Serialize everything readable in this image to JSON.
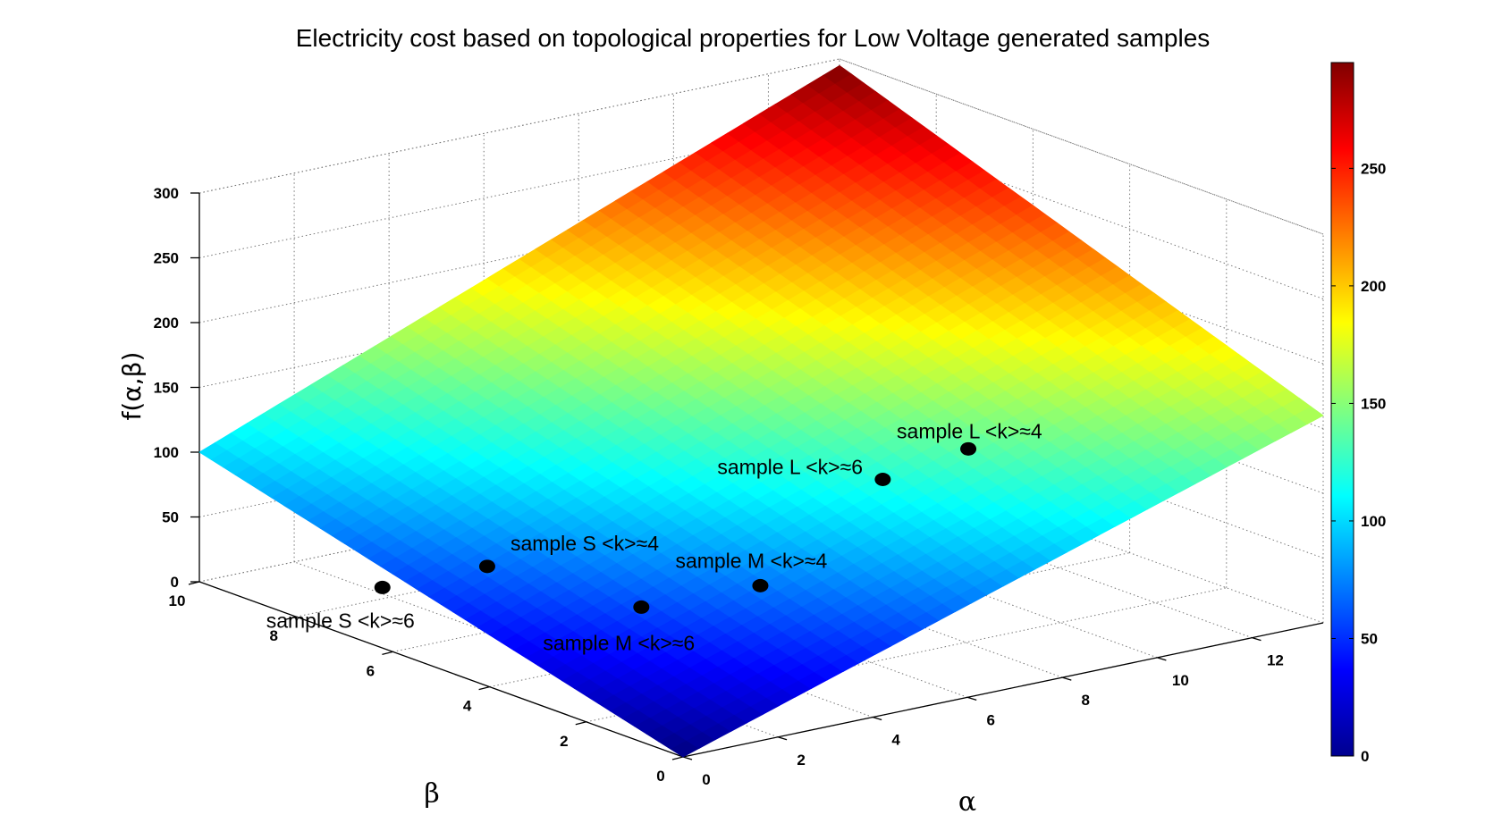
{
  "chart_data": {
    "type": "surface",
    "title": "Electricity cost based on topological properties for Low Voltage generated samples",
    "xlabel": "α",
    "ylabel": "β",
    "zlabel": "f(α,β)",
    "xlim": [
      0,
      13.5
    ],
    "ylim": [
      0,
      10
    ],
    "zlim": [
      0,
      300
    ],
    "xticks": [
      0,
      2,
      4,
      6,
      8,
      10,
      12
    ],
    "yticks": [
      0,
      2,
      4,
      6,
      8,
      10
    ],
    "zticks": [
      0,
      50,
      100,
      150,
      200,
      250,
      300
    ],
    "grid": true,
    "colormap": "jet",
    "colorbar": {
      "range": [
        0,
        295
      ],
      "ticks": [
        0,
        50,
        100,
        150,
        200,
        250
      ]
    },
    "surface_corners": [
      {
        "alpha": 0,
        "beta": 0,
        "f": 0
      },
      {
        "alpha": 0,
        "beta": 10,
        "f": 100
      },
      {
        "alpha": 13.5,
        "beta": 0,
        "f": 160
      },
      {
        "alpha": 13.5,
        "beta": 10,
        "f": 295
      }
    ],
    "samples": [
      {
        "label": "sample S <k>≈4",
        "alpha": 2.5,
        "beta": 6.5,
        "f": 40
      },
      {
        "label": "sample S <k>≈6",
        "alpha": 0.8,
        "beta": 7.0,
        "f": 30
      },
      {
        "label": "sample M <k>≈4",
        "alpha": 5.2,
        "beta": 3.5,
        "f": 45
      },
      {
        "label": "sample M <k>≈6",
        "alpha": 3.2,
        "beta": 4.0,
        "f": 37
      },
      {
        "label": "sample L <k>≈4",
        "alpha": 10.3,
        "beta": 4.2,
        "f": 102
      },
      {
        "label": "sample L <k>≈6",
        "alpha": 8.7,
        "beta": 4.4,
        "f": 88
      }
    ]
  }
}
